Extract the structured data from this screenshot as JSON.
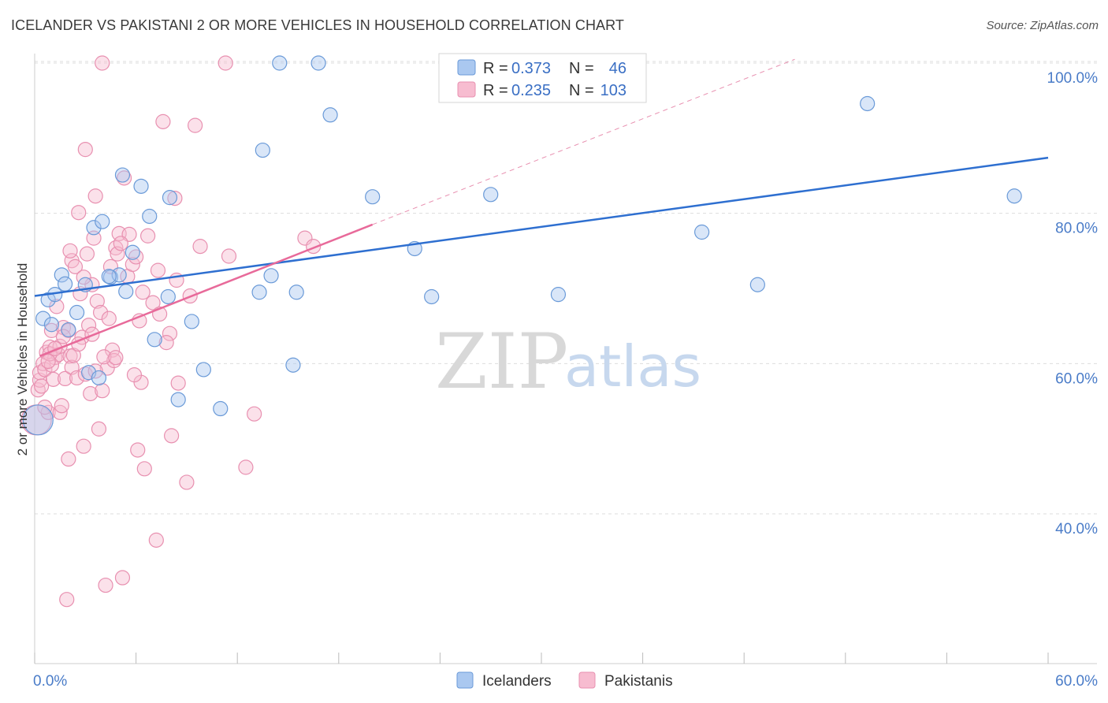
{
  "title": "ICELANDER VS PAKISTANI 2 OR MORE VEHICLES IN HOUSEHOLD CORRELATION CHART",
  "source": "Source: ZipAtlas.com",
  "watermark": {
    "zip": "ZIP",
    "atlas": "atlas"
  },
  "colors": {
    "blue_fill": "#aac8f0",
    "blue_stroke": "#6a9ad8",
    "blue_line": "#2e6fd0",
    "pink_fill": "#f7bcd0",
    "pink_stroke": "#e890b0",
    "pink_line": "#e86a9a",
    "grid": "#dddddd",
    "tick_text": "#4a7cc8"
  },
  "legend": {
    "r_label": "R =",
    "n_label": "N =",
    "series": [
      {
        "r": "0.373",
        "n": "46"
      },
      {
        "r": "0.235",
        "n": "103"
      }
    ]
  },
  "chart_data": {
    "type": "scatter",
    "title": "ICELANDER VS PAKISTANI 2 OR MORE VEHICLES IN HOUSEHOLD CORRELATION CHART",
    "xlabel": "",
    "ylabel": "2 or more Vehicles in Household",
    "xlim": [
      0,
      60
    ],
    "ylim": [
      20,
      104
    ],
    "x_tick_labels": [
      "0.0%",
      "60.0%"
    ],
    "y_ticks": [
      40,
      60,
      80,
      100
    ],
    "y_tick_labels": [
      "40.0%",
      "60.0%",
      "80.0%",
      "100.0%"
    ],
    "legend_position": "top-center",
    "series": [
      {
        "name": "Icelanders",
        "r": 0.373,
        "n": 46,
        "trend": {
          "x0": 0,
          "y0": 69.0,
          "x1": 60,
          "y1": 87.4
        },
        "points": [
          [
            0.2,
            52.5
          ],
          [
            0.5,
            66.0
          ],
          [
            0.8,
            68.5
          ],
          [
            1.0,
            65.2
          ],
          [
            1.2,
            69.2
          ],
          [
            1.6,
            71.8
          ],
          [
            1.8,
            70.6
          ],
          [
            2.0,
            64.5
          ],
          [
            2.5,
            66.8
          ],
          [
            3.0,
            70.5
          ],
          [
            3.2,
            58.8
          ],
          [
            3.5,
            78.1
          ],
          [
            3.8,
            58.1
          ],
          [
            4.0,
            78.9
          ],
          [
            4.5,
            71.5
          ],
          [
            5.0,
            71.8
          ],
          [
            5.2,
            85.1
          ],
          [
            5.4,
            69.6
          ],
          [
            5.8,
            74.8
          ],
          [
            6.3,
            83.6
          ],
          [
            6.8,
            79.6
          ],
          [
            7.1,
            63.2
          ],
          [
            7.9,
            68.9
          ],
          [
            8.0,
            82.1
          ],
          [
            8.5,
            55.2
          ],
          [
            9.3,
            65.6
          ],
          [
            10.0,
            59.2
          ],
          [
            11.0,
            54.0
          ],
          [
            13.3,
            69.5
          ],
          [
            13.5,
            88.4
          ],
          [
            14.0,
            71.7
          ],
          [
            14.5,
            100.0
          ],
          [
            15.3,
            59.8
          ],
          [
            15.5,
            69.5
          ],
          [
            16.8,
            100.0
          ],
          [
            17.5,
            93.1
          ],
          [
            20.0,
            82.2
          ],
          [
            22.5,
            75.3
          ],
          [
            23.5,
            68.9
          ],
          [
            27.0,
            82.5
          ],
          [
            31.0,
            69.2
          ],
          [
            39.5,
            77.5
          ],
          [
            42.8,
            70.5
          ],
          [
            49.3,
            94.6
          ],
          [
            58.0,
            82.3
          ],
          [
            4.4,
            71.6
          ]
        ]
      },
      {
        "name": "Pakistanis",
        "r": 0.235,
        "n": 103,
        "trend": {
          "x0": 0.3,
          "y0": 61.0,
          "x1": 20.0,
          "y1": 78.5
        },
        "trend_extension": {
          "x0": 20.0,
          "y0": 78.5,
          "x1": 45.0,
          "y1": 100.5
        },
        "points": [
          [
            0.1,
            52.5
          ],
          [
            0.2,
            56.5
          ],
          [
            0.3,
            57.8
          ],
          [
            0.3,
            58.8
          ],
          [
            0.5,
            60.0
          ],
          [
            0.6,
            59.2
          ],
          [
            0.7,
            61.5
          ],
          [
            0.8,
            53.5
          ],
          [
            0.9,
            62.2
          ],
          [
            1.0,
            64.4
          ],
          [
            1.1,
            57.9
          ],
          [
            1.2,
            60.8
          ],
          [
            1.3,
            67.6
          ],
          [
            1.4,
            61.2
          ],
          [
            1.5,
            53.5
          ],
          [
            1.6,
            54.4
          ],
          [
            1.7,
            64.8
          ],
          [
            1.8,
            58.0
          ],
          [
            1.9,
            28.6
          ],
          [
            2.0,
            64.4
          ],
          [
            2.0,
            47.3
          ],
          [
            2.1,
            61.0
          ],
          [
            2.2,
            73.7
          ],
          [
            2.2,
            59.5
          ],
          [
            2.4,
            72.9
          ],
          [
            2.5,
            58.1
          ],
          [
            2.6,
            80.1
          ],
          [
            2.7,
            69.3
          ],
          [
            2.8,
            63.5
          ],
          [
            2.9,
            49.0
          ],
          [
            3.0,
            88.5
          ],
          [
            3.1,
            74.6
          ],
          [
            3.2,
            65.1
          ],
          [
            3.3,
            56.0
          ],
          [
            3.4,
            70.5
          ],
          [
            3.5,
            76.7
          ],
          [
            3.6,
            82.3
          ],
          [
            3.7,
            68.3
          ],
          [
            3.8,
            51.3
          ],
          [
            3.9,
            66.8
          ],
          [
            4.0,
            56.4
          ],
          [
            4.0,
            100.0
          ],
          [
            4.2,
            30.5
          ],
          [
            4.3,
            59.4
          ],
          [
            4.5,
            72.9
          ],
          [
            4.6,
            61.8
          ],
          [
            4.7,
            60.4
          ],
          [
            4.8,
            75.4
          ],
          [
            4.9,
            74.6
          ],
          [
            5.0,
            77.3
          ],
          [
            5.2,
            31.5
          ],
          [
            5.3,
            84.7
          ],
          [
            5.5,
            71.6
          ],
          [
            5.6,
            77.2
          ],
          [
            5.8,
            73.2
          ],
          [
            6.0,
            74.2
          ],
          [
            6.1,
            48.5
          ],
          [
            6.2,
            65.7
          ],
          [
            6.3,
            57.5
          ],
          [
            6.5,
            46.0
          ],
          [
            6.7,
            77.0
          ],
          [
            7.0,
            68.1
          ],
          [
            7.2,
            36.5
          ],
          [
            7.4,
            66.6
          ],
          [
            7.6,
            92.2
          ],
          [
            8.0,
            64.0
          ],
          [
            8.1,
            50.4
          ],
          [
            8.3,
            82.0
          ],
          [
            8.4,
            71.1
          ],
          [
            8.5,
            57.4
          ],
          [
            9.0,
            44.2
          ],
          [
            9.2,
            69.0
          ],
          [
            9.5,
            91.7
          ],
          [
            9.8,
            75.6
          ],
          [
            11.3,
            100.0
          ],
          [
            11.5,
            74.3
          ],
          [
            12.5,
            46.2
          ],
          [
            13.0,
            53.3
          ],
          [
            16.0,
            76.7
          ],
          [
            16.5,
            75.6
          ],
          [
            1.0,
            59.8
          ],
          [
            1.5,
            62.3
          ],
          [
            2.3,
            61.1
          ],
          [
            3.0,
            58.6
          ],
          [
            4.1,
            60.9
          ],
          [
            0.4,
            57.0
          ],
          [
            0.9,
            61.3
          ],
          [
            1.7,
            63.6
          ],
          [
            2.6,
            62.6
          ],
          [
            5.9,
            58.5
          ],
          [
            7.8,
            62.8
          ],
          [
            3.6,
            59.0
          ],
          [
            4.4,
            66.0
          ],
          [
            0.6,
            54.2
          ],
          [
            2.9,
            71.5
          ],
          [
            6.4,
            69.5
          ],
          [
            1.2,
            62.0
          ],
          [
            5.1,
            76.0
          ],
          [
            7.3,
            72.4
          ],
          [
            2.1,
            75.0
          ],
          [
            3.4,
            63.9
          ],
          [
            0.8,
            60.3
          ],
          [
            4.8,
            60.8
          ]
        ]
      }
    ]
  },
  "bottom_legend": [
    {
      "label": "Icelanders"
    },
    {
      "label": "Pakistanis"
    }
  ]
}
